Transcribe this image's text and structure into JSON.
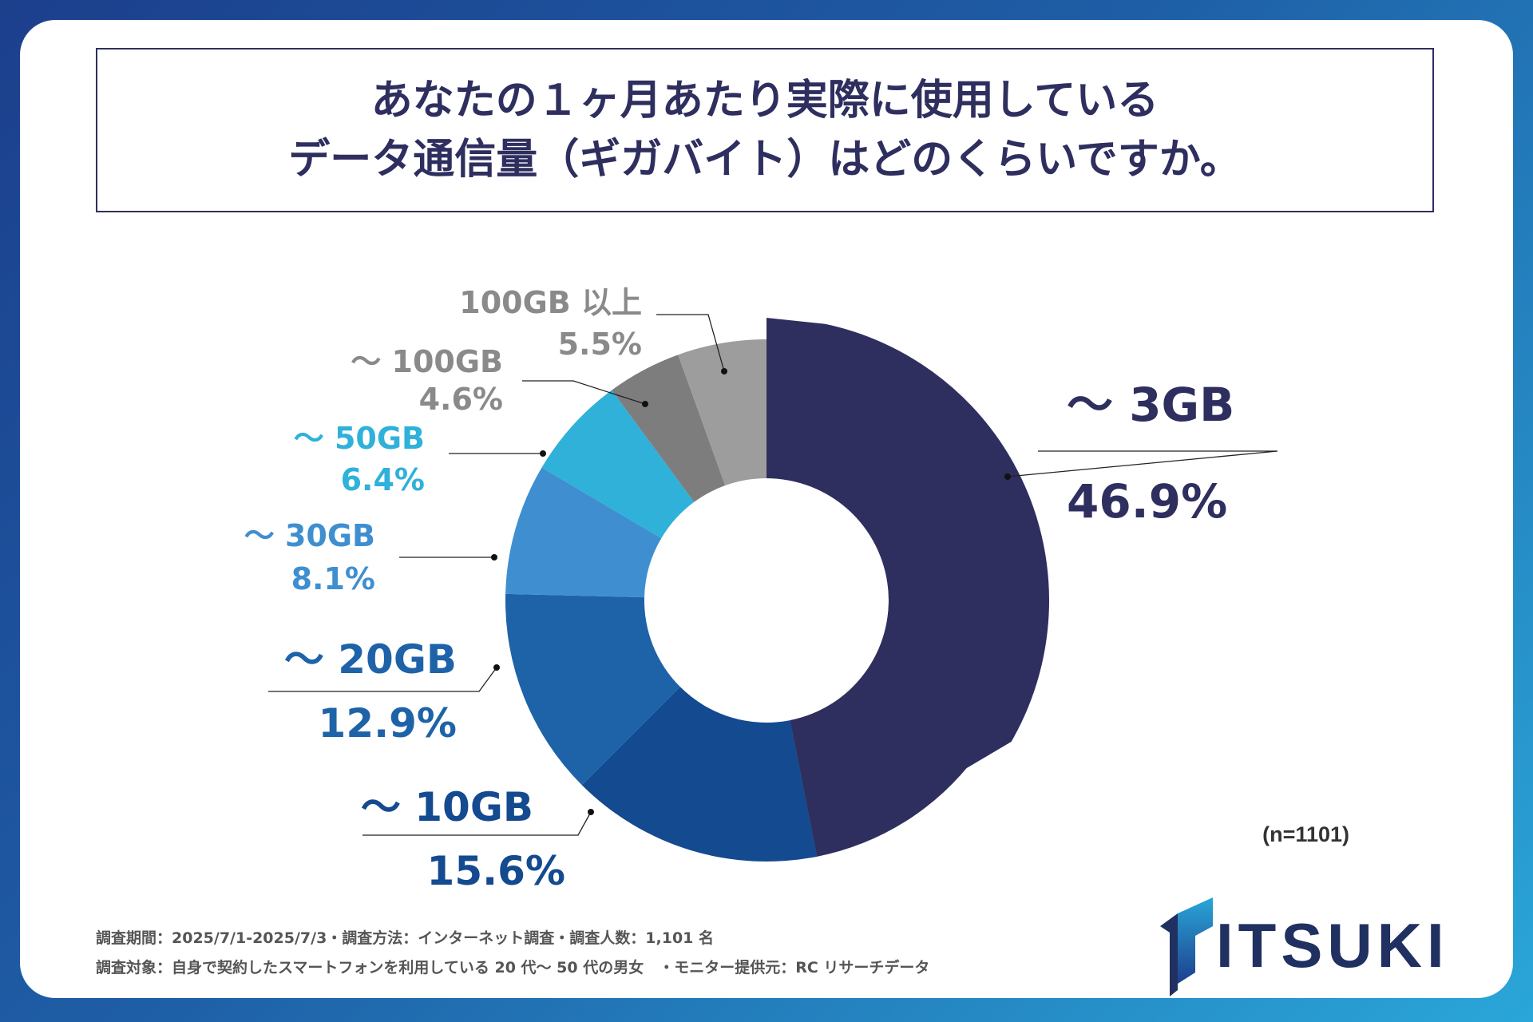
{
  "title": {
    "line1": "あなたの１ヶ月あたり実際に使用している",
    "line2": "データ通信量（ギガバイト）はどのくらいですか。"
  },
  "sample_note": "(n=1101)",
  "footer": {
    "line1": "調査期間：2025/7/1-2025/7/3・調査方法：インターネット調査・調査人数：1,101 名",
    "line2": "調査対象：自身で契約したスマートフォンを利用している 20 代〜 50 代の男女　・モニター提供元：RC リサーチデータ"
  },
  "logo": {
    "text": "ITSUKI",
    "icon": "itsuki-logo-mark"
  },
  "chart_data": {
    "type": "pie",
    "style": "donut",
    "title": "",
    "slices": [
      {
        "label": "〜 3GB",
        "value": 46.9,
        "value_label": "46.9%",
        "color": "#2e2f5f",
        "label_color": "#2e2f5f"
      },
      {
        "label": "〜 10GB",
        "value": 15.6,
        "value_label": "15.6%",
        "color": "#144a8f",
        "label_color": "#144a8f"
      },
      {
        "label": "〜 20GB",
        "value": 12.9,
        "value_label": "12.9%",
        "color": "#1e63a8",
        "label_color": "#1e63a8"
      },
      {
        "label": "〜 30GB",
        "value": 8.1,
        "value_label": "8.1%",
        "color": "#3f8fd0",
        "label_color": "#3f8fd0"
      },
      {
        "label": "〜 50GB",
        "value": 6.4,
        "value_label": "6.4%",
        "color": "#2fb1d9",
        "label_color": "#2fb1d9"
      },
      {
        "label": "〜 100GB",
        "value": 4.6,
        "value_label": "4.6%",
        "color": "#7d7d7d",
        "label_color": "#8a8a8a"
      },
      {
        "label": "100GB 以上",
        "value": 5.5,
        "value_label": "5.5%",
        "color": "#9d9d9d",
        "label_color": "#8a8a8a"
      }
    ],
    "start_angle": "12 o'clock",
    "direction": "clockwise"
  }
}
